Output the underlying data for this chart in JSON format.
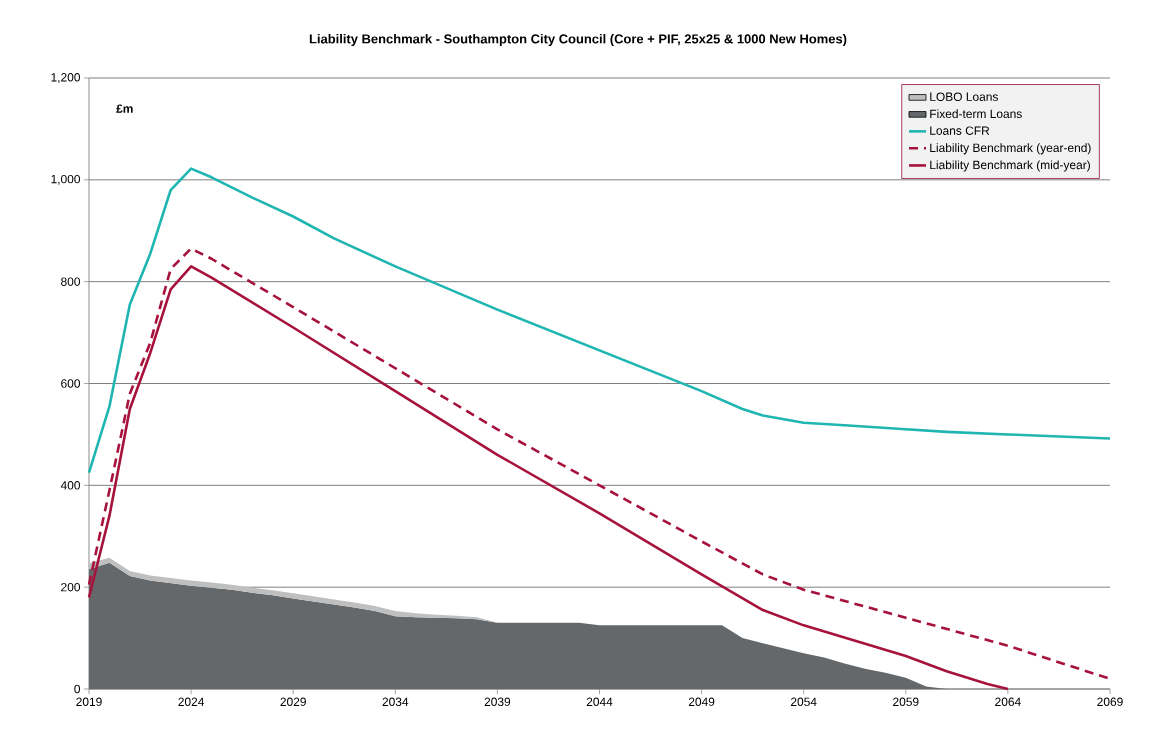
{
  "chart_data": {
    "type": "line",
    "title": "Liability Benchmark - Southampton City Council (Core + PIF, 25x25 & 1000 New Homes)",
    "ylabel": "£m",
    "xlim": [
      2019,
      2069
    ],
    "xticks": [
      2019,
      2024,
      2029,
      2034,
      2039,
      2044,
      2049,
      2054,
      2059,
      2064,
      2069
    ],
    "ylim": [
      0,
      1200
    ],
    "yticks": [
      0,
      200,
      400,
      600,
      800,
      {
        "value": 1000,
        "label": "1,000"
      },
      {
        "value": 1200,
        "label": "1,200"
      }
    ],
    "grid": "y",
    "legend": "top right",
    "stacked": true,
    "series": [
      {
        "name": "LOBO Loans",
        "type": "area",
        "color": "#bfbfbf",
        "x": [
          2019,
          2020,
          2021,
          2022,
          2023,
          2024,
          2025,
          2026,
          2027,
          2028,
          2029,
          2030,
          2031,
          2032,
          2033,
          2034,
          2035,
          2036,
          2037,
          2038,
          2039,
          2040,
          2041,
          2042,
          2043,
          2044,
          2045,
          2046,
          2047,
          2048,
          2049,
          2050,
          2051,
          2052,
          2053,
          2054,
          2055,
          2056,
          2057,
          2058,
          2059,
          2060,
          2061,
          2062,
          2063,
          2064,
          2065,
          2066,
          2067,
          2068,
          2069
        ],
        "values": [
          12,
          10,
          10,
          10,
          10,
          10,
          10,
          10,
          10,
          10,
          10,
          10,
          10,
          10,
          10,
          10,
          8,
          6,
          5,
          4,
          0,
          0,
          0,
          0,
          0,
          0,
          0,
          0,
          0,
          0,
          0,
          0,
          0,
          0,
          0,
          0,
          0,
          0,
          0,
          0,
          0,
          0,
          0,
          0,
          0,
          0,
          0,
          0,
          0,
          0,
          0
        ]
      },
      {
        "name": "Fixed-term Loans",
        "type": "area",
        "color": "#65686b",
        "x": [
          2019,
          2020,
          2021,
          2022,
          2023,
          2024,
          2025,
          2026,
          2027,
          2028,
          2029,
          2030,
          2031,
          2032,
          2033,
          2034,
          2035,
          2036,
          2037,
          2038,
          2039,
          2040,
          2041,
          2042,
          2043,
          2044,
          2045,
          2046,
          2047,
          2048,
          2049,
          2050,
          2051,
          2052,
          2053,
          2054,
          2055,
          2056,
          2057,
          2058,
          2059,
          2060,
          2061,
          2062,
          2063,
          2064,
          2065,
          2066,
          2067,
          2068,
          2069
        ],
        "values": [
          235,
          248,
          222,
          213,
          208,
          203,
          199,
          195,
          189,
          184,
          178,
          172,
          166,
          160,
          153,
          143,
          141,
          140,
          139,
          137,
          130,
          130,
          130,
          130,
          130,
          125,
          125,
          125,
          125,
          125,
          125,
          125,
          100,
          90,
          80,
          70,
          62,
          50,
          40,
          32,
          22,
          5,
          0,
          0,
          0,
          0,
          0,
          0,
          0,
          0,
          0
        ]
      },
      {
        "name": "Loans CFR",
        "color": "#1fb5b0",
        "line_style": "solid",
        "x": [
          2019,
          2020,
          2021,
          2022,
          2023,
          2024,
          2025,
          2027,
          2029,
          2031,
          2034,
          2039,
          2044,
          2049,
          2051,
          2052,
          2054,
          2056,
          2059,
          2061,
          2064,
          2069
        ],
        "values": [
          425,
          555,
          755,
          855,
          980,
          1022,
          1005,
          965,
          928,
          885,
          830,
          745,
          665,
          585,
          550,
          537,
          523,
          518,
          510,
          505,
          500,
          492
        ]
      },
      {
        "name": "Liability Benchmark (year-end)",
        "color": "#a6123c",
        "line_style": "dashed",
        "x": [
          2019,
          2020,
          2021,
          2022,
          2023,
          2024,
          2025,
          2029,
          2034,
          2039,
          2044,
          2049,
          2052,
          2054,
          2059,
          2064,
          2069
        ],
        "values": [
          205,
          390,
          580,
          680,
          825,
          865,
          845,
          750,
          630,
          510,
          400,
          290,
          225,
          195,
          140,
          85,
          20
        ]
      },
      {
        "name": "Liability Benchmark (mid-year)",
        "color": "#a6123c",
        "line_style": "solid",
        "x": [
          2019,
          2020,
          2021,
          2022,
          2023,
          2024,
          2025,
          2029,
          2034,
          2039,
          2044,
          2049,
          2052,
          2054,
          2059,
          2061,
          2063,
          2064
        ],
        "values": [
          180,
          340,
          550,
          660,
          785,
          830,
          808,
          710,
          585,
          460,
          345,
          225,
          155,
          125,
          65,
          35,
          10,
          0
        ]
      }
    ]
  }
}
